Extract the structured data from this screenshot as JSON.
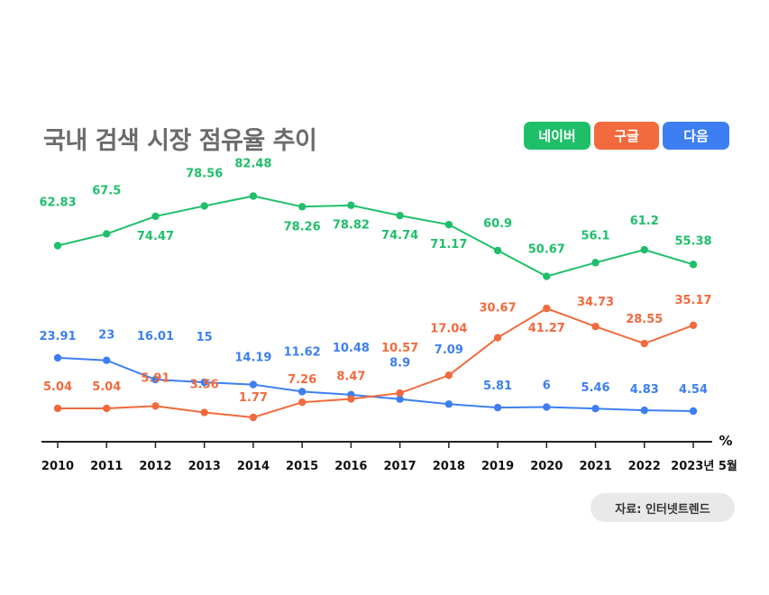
{
  "title": "국내 검색 시장 점유율 추이",
  "legend": {
    "naver": "네이버",
    "google": "구글",
    "daum": "다음"
  },
  "source": "자료: 인터넷트렌드",
  "unit": "%",
  "colors": {
    "naver": "#1fbf6a",
    "google": "#f26a3d",
    "daum": "#3d7ff2",
    "axis": "#222222"
  },
  "chart_data": {
    "type": "line",
    "categories": [
      "2010",
      "2011",
      "2012",
      "2013",
      "2014",
      "2015",
      "2016",
      "2017",
      "2018",
      "2019",
      "2020",
      "2021",
      "2022",
      "2023년 5월"
    ],
    "series": [
      {
        "name": "네이버",
        "key": "naver",
        "values": [
          62.83,
          67.5,
          74.47,
          78.56,
          82.48,
          78.26,
          78.82,
          74.74,
          71.17,
          60.9,
          50.67,
          56.1,
          61.2,
          55.38
        ],
        "labels": [
          "62.83",
          "67.5",
          "74.47",
          "78.56",
          "82.48",
          "78.26",
          "78.82",
          "74.74",
          "71.17",
          "60.9",
          "50.67",
          "56.1",
          "61.2",
          "55.38"
        ]
      },
      {
        "name": "구글",
        "key": "google",
        "values": [
          5.04,
          5.04,
          5.91,
          3.56,
          1.77,
          7.26,
          8.47,
          10.57,
          17.04,
          30.67,
          41.27,
          34.73,
          28.55,
          35.17
        ],
        "labels": [
          "5.04",
          "5.04",
          "5.91",
          "3.56",
          "1.77",
          "7.26",
          "8.47",
          "10.57",
          "17.04",
          "30.67",
          "41.27",
          "34.73",
          "28.55",
          "35.17"
        ]
      },
      {
        "name": "다음",
        "key": "daum",
        "values": [
          23.91,
          23,
          16.01,
          15,
          14.19,
          11.62,
          10.48,
          8.9,
          7.09,
          5.81,
          6,
          5.46,
          4.83,
          4.54
        ],
        "labels": [
          "23.91",
          "23",
          "16.01",
          "15",
          "14.19",
          "11.62",
          "10.48",
          "8.9",
          "7.09",
          "5.81",
          "6",
          "5.46",
          "4.83",
          "4.54"
        ]
      }
    ]
  }
}
